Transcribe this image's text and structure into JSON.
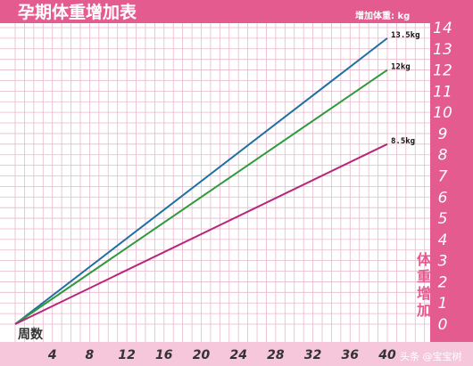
{
  "chart_data": {
    "type": "line",
    "title": "孕期体重增加表",
    "unit_label": "增加体重: kg",
    "xlabel": "周数",
    "ylabel": "体重增加",
    "x_ticks": [
      4,
      8,
      12,
      16,
      20,
      24,
      28,
      32,
      36,
      40
    ],
    "y_ticks": [
      0,
      1,
      2,
      3,
      4,
      5,
      6,
      7,
      8,
      9,
      10,
      11,
      12,
      13,
      14
    ],
    "xlim": [
      0,
      40
    ],
    "ylim": [
      0,
      14
    ],
    "grid": true,
    "series": [
      {
        "name": "13.5kg",
        "color": "#1f6fa0",
        "x": [
          0,
          40
        ],
        "y": [
          0,
          13.5
        ]
      },
      {
        "name": "12kg",
        "color": "#2e9a3e",
        "x": [
          0,
          40
        ],
        "y": [
          0,
          12
        ]
      },
      {
        "name": "8.5kg",
        "color": "#b8267c",
        "x": [
          0,
          40
        ],
        "y": [
          0,
          8.5
        ]
      }
    ]
  },
  "colors": {
    "accent": "#e45b90",
    "grid": "#e7b9cc",
    "background": "#ffffff"
  },
  "watermark": "头条 @宝宝树"
}
